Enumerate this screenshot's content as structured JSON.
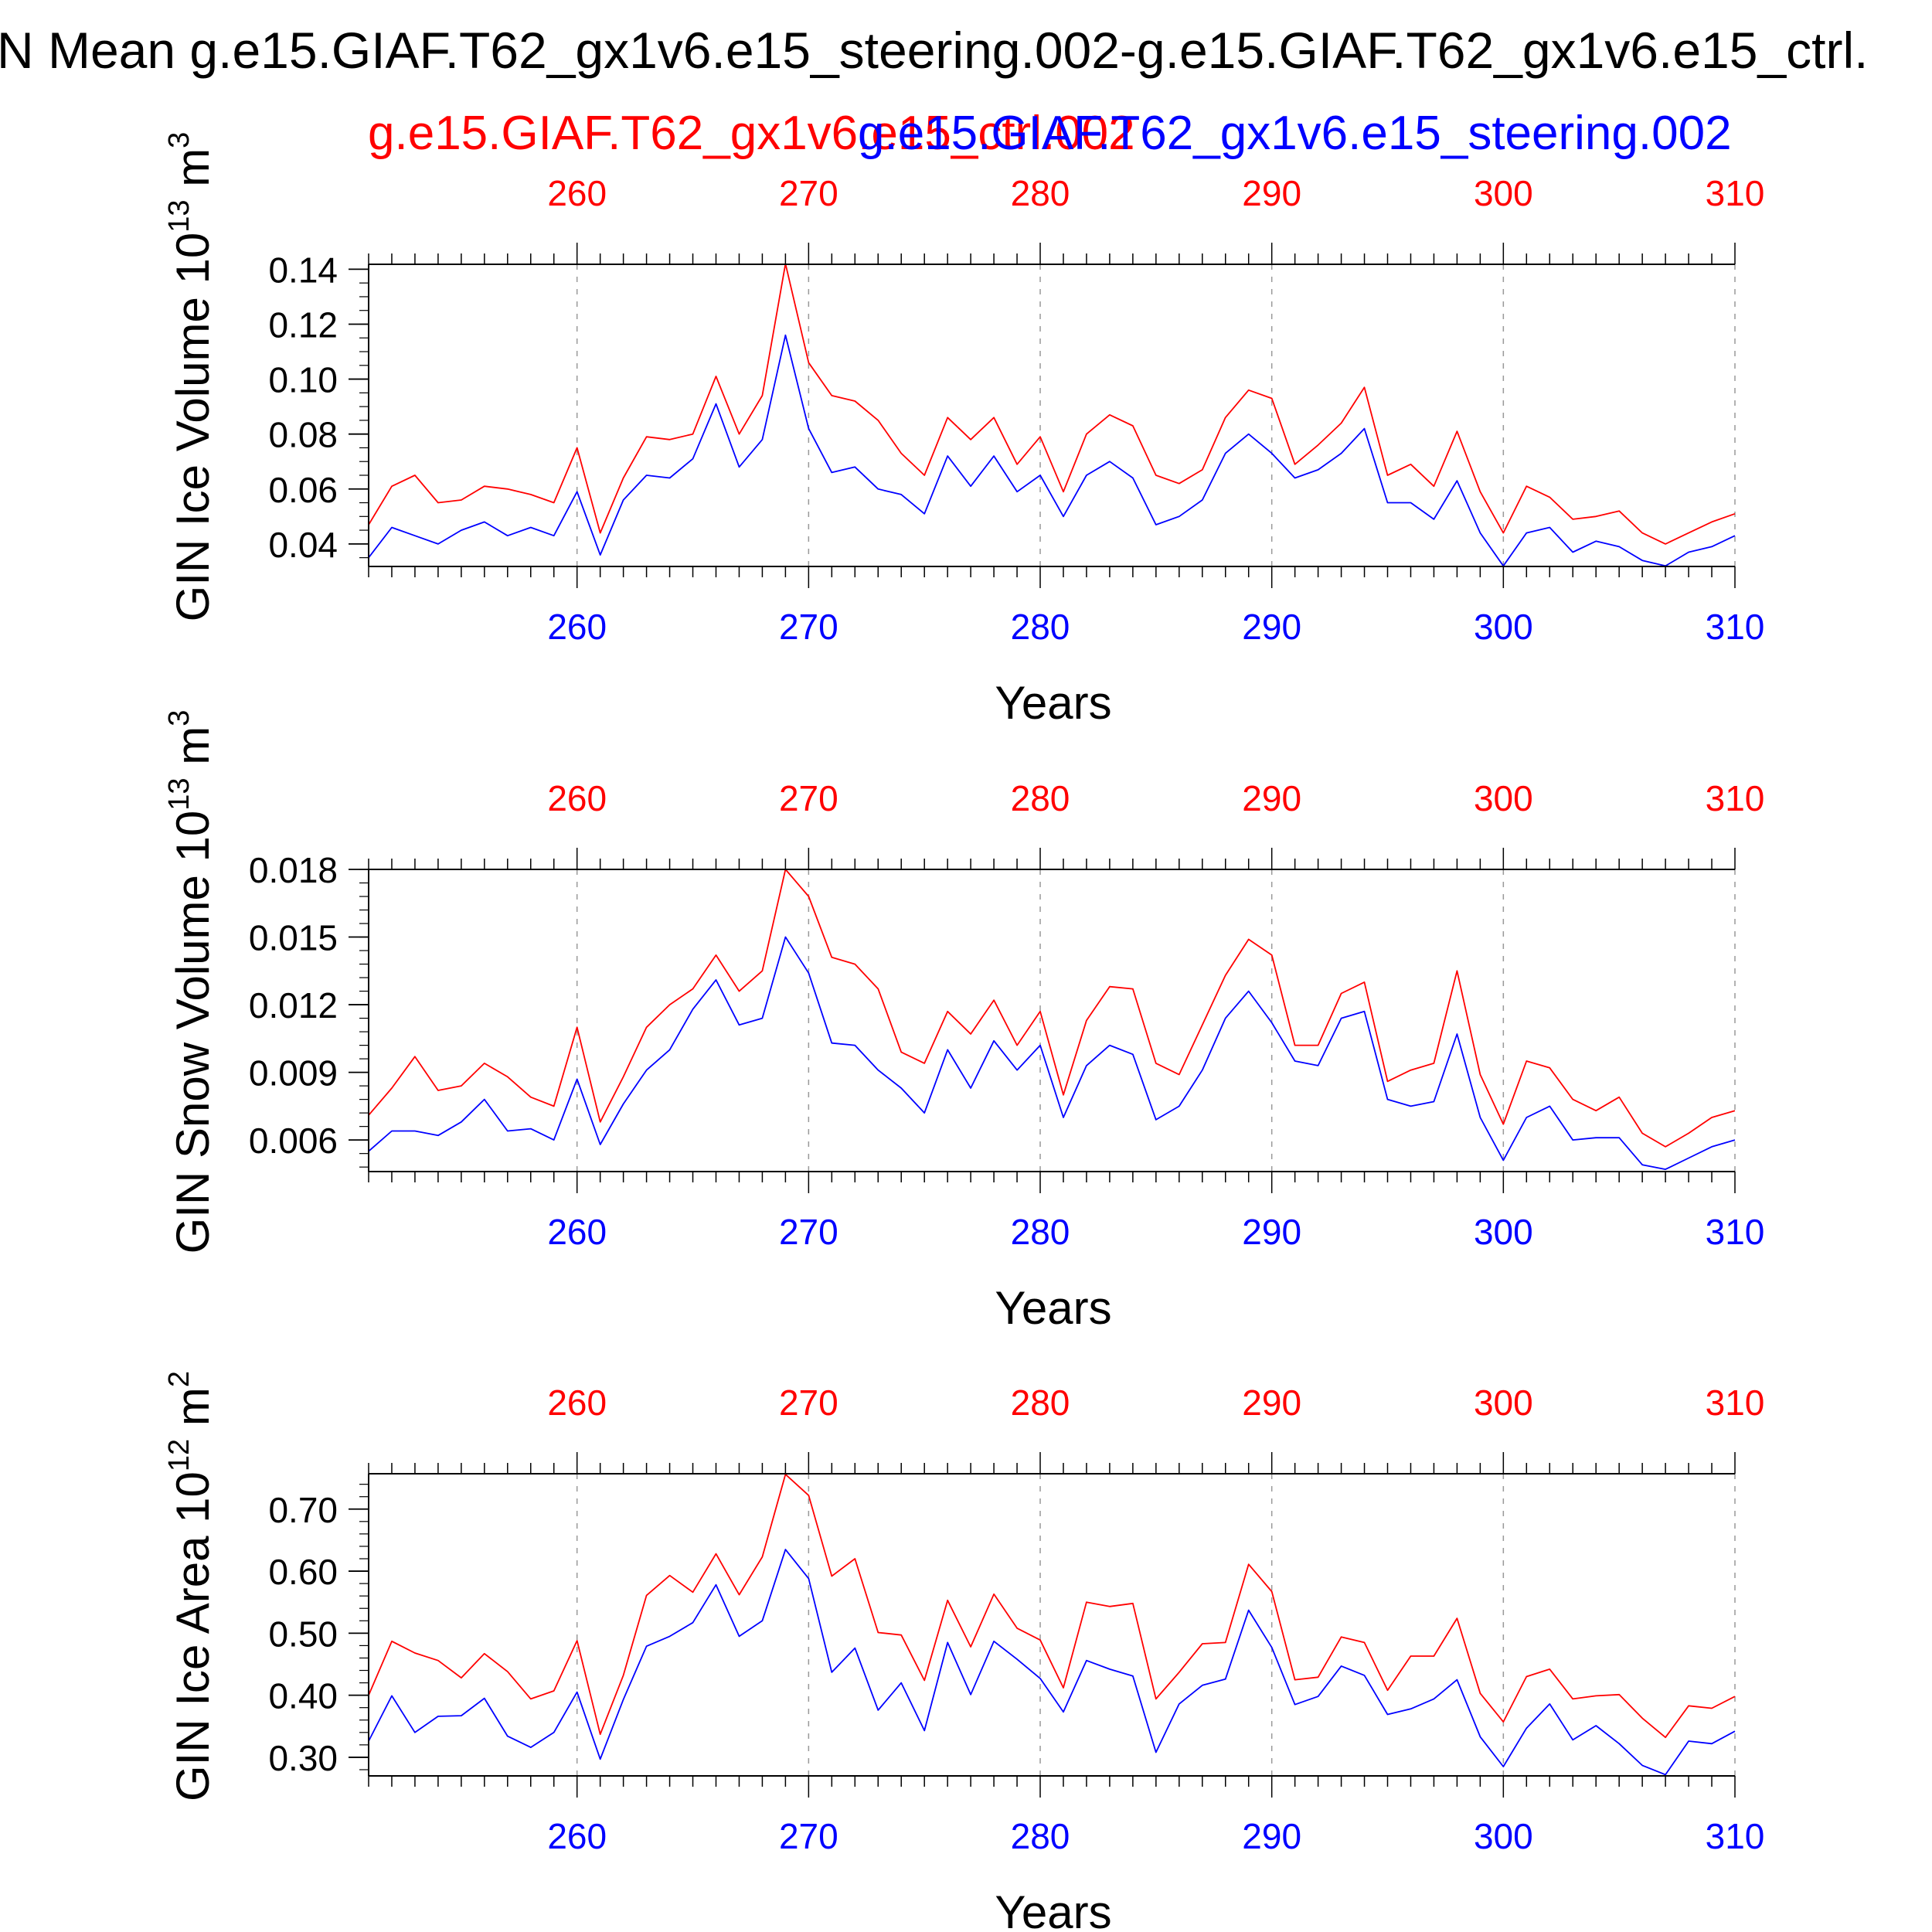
{
  "title": "N Mean g.e15.GIAF.T62_gx1v6.e15_steering.002-g.e15.GIAF.T62_gx1v6.e15_ctrl.",
  "legend": {
    "red": "g.e15.GIAF.T62_gx1v6.e15_ctrl.002",
    "blue": "g.e15.GIAF.T62_gx1v6.e15_steering.002"
  },
  "colors": {
    "red": "#ff0000",
    "blue": "#0000ff",
    "axis": "#000000",
    "grid": "#999999"
  },
  "chart_data": [
    {
      "type": "line",
      "ylabel_main": "GIN Ice Volume 10",
      "ylabel_exp": "13",
      "ylabel_unit": " m",
      "ylabel_unit_exp": "3",
      "xlabel": "Years",
      "xlim": [
        251,
        310
      ],
      "ylim": [
        0.0318,
        0.1418
      ],
      "yticks": [
        0.04,
        0.06,
        0.08,
        0.1,
        0.12,
        0.14
      ],
      "ytick_labels": [
        "0.04",
        "0.06",
        "0.08",
        "0.10",
        "0.12",
        "0.14"
      ],
      "yminor_step": 0.005,
      "xticks": [
        260,
        270,
        280,
        290,
        300,
        310
      ],
      "xtick_labels": [
        "260",
        "270",
        "280",
        "290",
        "300",
        "310"
      ],
      "x_start": 251,
      "series": [
        {
          "name": "g.e15.GIAF.T62_gx1v6.e15_ctrl.002",
          "color": "red",
          "values": [
            0.047,
            0.061,
            0.065,
            0.055,
            0.056,
            0.061,
            0.06,
            0.058,
            0.055,
            0.075,
            0.044,
            0.064,
            0.079,
            0.078,
            0.08,
            0.101,
            0.08,
            0.094,
            0.142,
            0.106,
            0.094,
            0.092,
            0.085,
            0.073,
            0.065,
            0.086,
            0.078,
            0.086,
            0.069,
            0.079,
            0.059,
            0.08,
            0.087,
            0.083,
            0.065,
            0.062,
            0.067,
            0.086,
            0.096,
            0.093,
            0.069,
            0.076,
            0.084,
            0.097,
            0.065,
            0.069,
            0.061,
            0.081,
            0.059,
            0.044,
            0.061,
            0.057,
            0.049,
            0.05,
            0.052,
            0.044,
            0.04,
            0.044,
            0.048,
            0.051
          ]
        },
        {
          "name": "g.e15.GIAF.T62_gx1v6.e15_steering.002",
          "color": "blue",
          "values": [
            0.035,
            0.046,
            0.043,
            0.04,
            0.045,
            0.048,
            0.043,
            0.046,
            0.043,
            0.059,
            0.036,
            0.056,
            0.065,
            0.064,
            0.071,
            0.091,
            0.068,
            0.078,
            0.116,
            0.082,
            0.066,
            0.068,
            0.06,
            0.058,
            0.051,
            0.072,
            0.061,
            0.072,
            0.059,
            0.065,
            0.05,
            0.065,
            0.07,
            0.064,
            0.047,
            0.05,
            0.056,
            0.073,
            0.08,
            0.073,
            0.064,
            0.067,
            0.073,
            0.082,
            0.055,
            0.055,
            0.049,
            0.063,
            0.044,
            0.032,
            0.044,
            0.046,
            0.037,
            0.041,
            0.039,
            0.034,
            0.032,
            0.037,
            0.039,
            0.043
          ]
        }
      ]
    },
    {
      "type": "line",
      "ylabel_main": "GIN Snow Volume 10",
      "ylabel_exp": "13",
      "ylabel_unit": " m",
      "ylabel_unit_exp": "3",
      "xlabel": "Years",
      "xlim": [
        251,
        310
      ],
      "ylim": [
        0.0046,
        0.018
      ],
      "yticks": [
        0.006,
        0.009,
        0.012,
        0.015,
        0.018
      ],
      "ytick_labels": [
        "0.006",
        "0.009",
        "0.012",
        "0.015",
        "0.018"
      ],
      "yminor_step": 0.0006,
      "xticks": [
        260,
        270,
        280,
        290,
        300,
        310
      ],
      "xtick_labels": [
        "260",
        "270",
        "280",
        "290",
        "300",
        "310"
      ],
      "x_start": 251,
      "series": [
        {
          "name": "g.e15.GIAF.T62_gx1v6.e15_ctrl.002",
          "color": "red",
          "values": [
            0.0071,
            0.0083,
            0.0097,
            0.0082,
            0.0084,
            0.0094,
            0.0088,
            0.0079,
            0.0075,
            0.011,
            0.0068,
            0.0088,
            0.011,
            0.012,
            0.0127,
            0.0142,
            0.0126,
            0.0135,
            0.018,
            0.0168,
            0.0141,
            0.0138,
            0.0127,
            0.0099,
            0.0094,
            0.0117,
            0.0107,
            0.0122,
            0.0102,
            0.0117,
            0.008,
            0.0113,
            0.0128,
            0.0127,
            0.0094,
            0.0089,
            0.0111,
            0.0133,
            0.0149,
            0.0142,
            0.0102,
            0.0102,
            0.0125,
            0.013,
            0.0086,
            0.0091,
            0.0094,
            0.0135,
            0.0089,
            0.0067,
            0.0095,
            0.0092,
            0.0078,
            0.0073,
            0.0079,
            0.0063,
            0.0057,
            0.0063,
            0.007,
            0.0073
          ]
        },
        {
          "name": "g.e15.GIAF.T62_gx1v6.e15_steering.002",
          "color": "blue",
          "values": [
            0.0055,
            0.0064,
            0.0064,
            0.0062,
            0.0068,
            0.0078,
            0.0064,
            0.0065,
            0.006,
            0.0087,
            0.0058,
            0.0076,
            0.0091,
            0.01,
            0.0118,
            0.0131,
            0.0111,
            0.0114,
            0.015,
            0.0134,
            0.0103,
            0.0102,
            0.0091,
            0.0083,
            0.0072,
            0.01,
            0.0083,
            0.0104,
            0.0091,
            0.0102,
            0.007,
            0.0093,
            0.0102,
            0.0098,
            0.0069,
            0.0075,
            0.0091,
            0.0114,
            0.0126,
            0.0112,
            0.0095,
            0.0093,
            0.0114,
            0.0117,
            0.0078,
            0.0075,
            0.0077,
            0.0107,
            0.007,
            0.0051,
            0.007,
            0.0075,
            0.006,
            0.0061,
            0.0061,
            0.0049,
            0.0047,
            0.0052,
            0.0057,
            0.006
          ]
        }
      ]
    },
    {
      "type": "line",
      "ylabel_main": "GIN Ice Area 10",
      "ylabel_exp": "12",
      "ylabel_unit": " m",
      "ylabel_unit_exp": "2",
      "xlabel": "Years",
      "xlim": [
        251,
        310
      ],
      "ylim": [
        0.27,
        0.757
      ],
      "yticks": [
        0.3,
        0.4,
        0.5,
        0.6,
        0.7
      ],
      "ytick_labels": [
        "0.30",
        "0.40",
        "0.50",
        "0.60",
        "0.70"
      ],
      "yminor_step": 0.02,
      "xticks": [
        260,
        270,
        280,
        290,
        300,
        310
      ],
      "xtick_labels": [
        "260",
        "270",
        "280",
        "290",
        "300",
        "310"
      ],
      "x_start": 251,
      "series": [
        {
          "name": "g.e15.GIAF.T62_gx1v6.e15_ctrl.002",
          "color": "red",
          "values": [
            0.4,
            0.487,
            0.468,
            0.456,
            0.428,
            0.467,
            0.438,
            0.394,
            0.407,
            0.488,
            0.337,
            0.432,
            0.561,
            0.593,
            0.566,
            0.628,
            0.562,
            0.623,
            0.756,
            0.722,
            0.592,
            0.62,
            0.501,
            0.497,
            0.424,
            0.553,
            0.478,
            0.563,
            0.508,
            0.489,
            0.412,
            0.55,
            0.543,
            0.548,
            0.394,
            0.437,
            0.483,
            0.485,
            0.611,
            0.567,
            0.425,
            0.429,
            0.494,
            0.485,
            0.408,
            0.463,
            0.463,
            0.524,
            0.403,
            0.357,
            0.43,
            0.442,
            0.394,
            0.399,
            0.401,
            0.363,
            0.332,
            0.383,
            0.379,
            0.398
          ]
        },
        {
          "name": "g.e15.GIAF.T62_gx1v6.e15_steering.002",
          "color": "blue",
          "values": [
            0.326,
            0.399,
            0.34,
            0.366,
            0.367,
            0.395,
            0.334,
            0.316,
            0.34,
            0.405,
            0.297,
            0.393,
            0.479,
            0.495,
            0.517,
            0.578,
            0.495,
            0.52,
            0.635,
            0.588,
            0.437,
            0.476,
            0.376,
            0.42,
            0.343,
            0.485,
            0.401,
            0.487,
            0.458,
            0.427,
            0.373,
            0.456,
            0.442,
            0.431,
            0.308,
            0.386,
            0.416,
            0.426,
            0.537,
            0.477,
            0.385,
            0.398,
            0.447,
            0.432,
            0.369,
            0.378,
            0.394,
            0.425,
            0.333,
            0.285,
            0.347,
            0.386,
            0.328,
            0.351,
            0.322,
            0.287,
            0.272,
            0.326,
            0.322,
            0.342
          ]
        }
      ]
    }
  ]
}
